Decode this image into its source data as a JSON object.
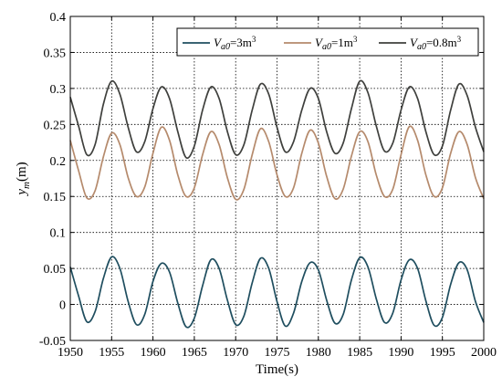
{
  "chart_data": {
    "type": "line",
    "xlabel": "Time(s)",
    "ylabel": {
      "main": "y",
      "sub": "m",
      "unit": "(m)"
    },
    "xlim": [
      1950,
      2000
    ],
    "ylim": [
      -0.05,
      0.4
    ],
    "x_ticks": [
      1950,
      1955,
      1960,
      1965,
      1970,
      1975,
      1980,
      1985,
      1990,
      1995,
      2000
    ],
    "y_ticks": [
      -0.05,
      0,
      0.05,
      0.1,
      0.15,
      0.2,
      0.25,
      0.3,
      0.35,
      0.4
    ],
    "x_tick_labels": [
      "1950",
      "1955",
      "1960",
      "1965",
      "1970",
      "1975",
      "1980",
      "1985",
      "1990",
      "1995",
      "2000"
    ],
    "y_tick_labels": [
      "-0.05",
      "0",
      "0.05",
      "0.1",
      "0.15",
      "0.2",
      "0.25",
      "0.3",
      "0.35",
      "0.4"
    ],
    "grid": true,
    "legend_position": "top-right",
    "series": [
      {
        "name": "V_a0=3m^3",
        "legend": {
          "v": "V",
          "sub": "a0",
          "eq": "=3m",
          "sup": "3"
        },
        "color": "#1f4e5f",
        "x": [
          1950,
          1951,
          1952,
          1953,
          1954,
          1955,
          1956,
          1957,
          1958,
          1959,
          1960,
          1961,
          1962,
          1963,
          1964,
          1965,
          1966,
          1967,
          1968,
          1969,
          1970,
          1971,
          1972,
          1973,
          1974,
          1975,
          1976,
          1977,
          1978,
          1979,
          1980,
          1981,
          1982,
          1983,
          1984,
          1985,
          1986,
          1987,
          1988,
          1989,
          1990,
          1991,
          1992,
          1993,
          1994,
          1995,
          1996,
          1997,
          1998,
          1999,
          2000
        ],
        "values": [
          0.052,
          0.012,
          -0.024,
          -0.01,
          0.036,
          0.066,
          0.05,
          0.004,
          -0.028,
          -0.014,
          0.032,
          0.057,
          0.045,
          0.002,
          -0.031,
          -0.019,
          0.026,
          0.062,
          0.05,
          0.006,
          -0.028,
          -0.016,
          0.03,
          0.064,
          0.05,
          0.004,
          -0.03,
          -0.012,
          0.032,
          0.058,
          0.048,
          0.006,
          -0.026,
          -0.014,
          0.034,
          0.065,
          0.052,
          0.008,
          -0.025,
          -0.012,
          0.034,
          0.062,
          0.05,
          0.005,
          -0.029,
          -0.018,
          0.028,
          0.058,
          0.048,
          0.004,
          -0.025
        ]
      },
      {
        "name": "V_a0=1m^3",
        "legend": {
          "v": "V",
          "sub": "a0",
          "eq": "=1m",
          "sup": "3"
        },
        "color": "#b58a6c",
        "x": [
          1950,
          1951,
          1952,
          1953,
          1954,
          1955,
          1956,
          1957,
          1958,
          1959,
          1960,
          1961,
          1962,
          1963,
          1964,
          1965,
          1966,
          1967,
          1968,
          1969,
          1970,
          1971,
          1972,
          1973,
          1974,
          1975,
          1976,
          1977,
          1978,
          1979,
          1980,
          1981,
          1982,
          1983,
          1984,
          1985,
          1986,
          1987,
          1988,
          1989,
          1990,
          1991,
          1992,
          1993,
          1994,
          1995,
          1996,
          1997,
          1998,
          1999,
          2000
        ],
        "values": [
          0.228,
          0.186,
          0.148,
          0.158,
          0.205,
          0.238,
          0.222,
          0.176,
          0.15,
          0.163,
          0.21,
          0.246,
          0.228,
          0.18,
          0.15,
          0.162,
          0.208,
          0.24,
          0.222,
          0.176,
          0.146,
          0.16,
          0.208,
          0.244,
          0.226,
          0.18,
          0.15,
          0.162,
          0.21,
          0.242,
          0.224,
          0.178,
          0.147,
          0.16,
          0.206,
          0.24,
          0.226,
          0.18,
          0.15,
          0.16,
          0.208,
          0.247,
          0.228,
          0.18,
          0.15,
          0.162,
          0.21,
          0.24,
          0.222,
          0.176,
          0.147
        ]
      },
      {
        "name": "V_a0=0.8m^3",
        "legend": {
          "v": "V",
          "sub": "a0",
          "eq": "=0.8m",
          "sup": "3"
        },
        "color": "#3f403d",
        "x": [
          1950,
          1951,
          1952,
          1953,
          1954,
          1955,
          1956,
          1957,
          1958,
          1959,
          1960,
          1961,
          1962,
          1963,
          1964,
          1965,
          1966,
          1967,
          1968,
          1969,
          1970,
          1971,
          1972,
          1973,
          1974,
          1975,
          1976,
          1977,
          1978,
          1979,
          1980,
          1981,
          1982,
          1983,
          1984,
          1985,
          1986,
          1987,
          1988,
          1989,
          1990,
          1991,
          1992,
          1993,
          1994,
          1995,
          1996,
          1997,
          1998,
          1999,
          2000
        ],
        "values": [
          0.288,
          0.248,
          0.208,
          0.222,
          0.278,
          0.31,
          0.292,
          0.246,
          0.212,
          0.226,
          0.272,
          0.302,
          0.286,
          0.24,
          0.204,
          0.22,
          0.27,
          0.302,
          0.286,
          0.24,
          0.208,
          0.222,
          0.27,
          0.306,
          0.292,
          0.246,
          0.212,
          0.226,
          0.27,
          0.3,
          0.286,
          0.24,
          0.21,
          0.224,
          0.272,
          0.31,
          0.294,
          0.248,
          0.213,
          0.224,
          0.27,
          0.302,
          0.286,
          0.24,
          0.208,
          0.22,
          0.27,
          0.306,
          0.29,
          0.246,
          0.212
        ]
      }
    ]
  }
}
